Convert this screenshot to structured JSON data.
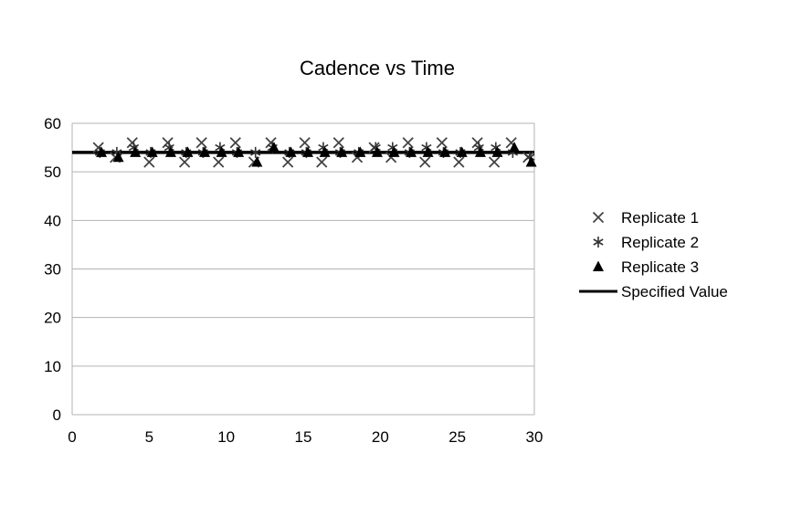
{
  "chart_data": {
    "type": "scatter",
    "title": "Cadence vs Time",
    "xlabel": "",
    "ylabel": "",
    "xlim": [
      0,
      30
    ],
    "ylim": [
      0,
      60
    ],
    "xticks": [
      "0",
      "5",
      "10",
      "15",
      "20",
      "25",
      "30"
    ],
    "yticks": [
      "0",
      "10",
      "20",
      "30",
      "40",
      "50",
      "60"
    ],
    "grid": "horizontal",
    "legend_position": "right",
    "series": [
      {
        "name": "Replicate 1",
        "marker": "x-icon",
        "color": "#444444",
        "x": [
          1.7,
          2.8,
          3.9,
          5.0,
          6.2,
          7.3,
          8.4,
          9.5,
          10.6,
          11.8,
          12.9,
          14.0,
          15.1,
          16.2,
          17.3,
          18.5,
          19.6,
          20.7,
          21.8,
          22.9,
          24.0,
          25.1,
          26.3,
          27.4,
          28.5,
          29.6
        ],
        "y": [
          55,
          53,
          56,
          52,
          56,
          52,
          56,
          52,
          56,
          52,
          56,
          52,
          56,
          52,
          56,
          53,
          55,
          53,
          56,
          52,
          56,
          52,
          56,
          52,
          56,
          53
        ]
      },
      {
        "name": "Replicate 2",
        "marker": "asterisk-icon",
        "color": "#333333",
        "x": [
          1.8,
          2.9,
          4.0,
          5.1,
          6.3,
          7.4,
          8.5,
          9.6,
          10.7,
          11.9,
          13.0,
          14.1,
          15.2,
          16.3,
          17.4,
          18.6,
          19.7,
          20.8,
          21.9,
          23.0,
          24.1,
          25.2,
          26.4,
          27.5,
          28.6,
          29.7
        ],
        "y": [
          54,
          54,
          55,
          54,
          55,
          54,
          54,
          55,
          54,
          54,
          55,
          54,
          54,
          55,
          54,
          54,
          55,
          55,
          54,
          55,
          54,
          54,
          55,
          55,
          54,
          53
        ]
      },
      {
        "name": "Replicate 3",
        "marker": "triangle-icon",
        "color": "#000000",
        "x": [
          1.9,
          3.0,
          4.1,
          5.2,
          6.4,
          7.5,
          8.6,
          9.7,
          10.8,
          12.0,
          13.1,
          14.2,
          15.3,
          16.4,
          17.5,
          18.7,
          19.8,
          20.9,
          22.0,
          23.1,
          24.2,
          25.3,
          26.5,
          27.6,
          28.7,
          29.8
        ],
        "y": [
          54,
          53,
          54,
          54,
          54,
          54,
          54,
          54,
          54,
          52,
          55,
          54,
          54,
          54,
          54,
          54,
          54,
          54,
          54,
          54,
          54,
          54,
          54,
          54,
          55,
          52
        ]
      },
      {
        "name": "Specified Value",
        "type": "line",
        "color": "#000000",
        "x": [
          0,
          30
        ],
        "y": [
          54,
          54
        ]
      }
    ]
  }
}
